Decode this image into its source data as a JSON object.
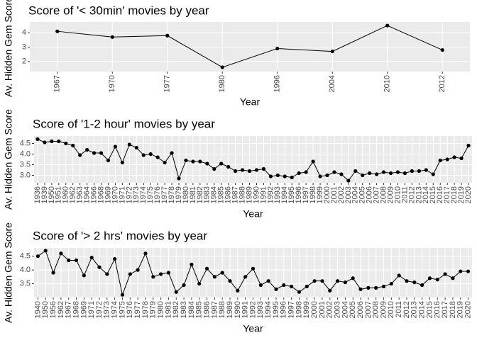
{
  "chart_data": [
    {
      "type": "line",
      "title": "Score of '< 30min' movies by year",
      "x_label": "Year",
      "y_label": "Av. Hidden Gem Score",
      "color": "#000000",
      "grid": true,
      "categories": [
        "1967",
        "1970",
        "1977",
        "1980",
        "1996",
        "2004",
        "2010",
        "2012"
      ],
      "values": [
        4.1,
        3.7,
        3.8,
        1.6,
        2.9,
        2.7,
        4.5,
        2.8
      ],
      "ylim": [
        1.3,
        4.75
      ],
      "yticks": [
        2,
        3,
        4
      ]
    },
    {
      "type": "line",
      "title": "Score of '1-2 hour' movies by year",
      "x_label": "Year",
      "y_label": "Av. Hidden Gem Score",
      "color": "#000000",
      "grid": true,
      "categories": [
        "1936",
        "1939",
        "1950",
        "1951",
        "1960",
        "1962",
        "1963",
        "1964",
        "1966",
        "1968",
        "1969",
        "1970",
        "1971",
        "1972",
        "1973",
        "1974",
        "1975",
        "1976",
        "1977",
        "1978",
        "1979",
        "1980",
        "1981",
        "1982",
        "1983",
        "1984",
        "1985",
        "1986",
        "1987",
        "1988",
        "1989",
        "1990",
        "1991",
        "1992",
        "1993",
        "1994",
        "1995",
        "1996",
        "1997",
        "1998",
        "1999",
        "2000",
        "2001",
        "2002",
        "2003",
        "2004",
        "2005",
        "2006",
        "2007",
        "2008",
        "2009",
        "2010",
        "2011",
        "2012",
        "2013",
        "2014",
        "2015",
        "2016",
        "2017",
        "2018",
        "2019",
        "2020"
      ],
      "values": [
        4.7,
        4.55,
        4.6,
        4.6,
        4.5,
        4.4,
        3.95,
        4.2,
        4.05,
        4.05,
        3.7,
        4.35,
        3.6,
        4.45,
        4.3,
        3.95,
        4.0,
        3.85,
        3.6,
        4.05,
        2.85,
        3.7,
        3.65,
        3.65,
        3.55,
        3.3,
        3.55,
        3.4,
        3.2,
        3.25,
        3.2,
        3.25,
        3.3,
        2.95,
        3.0,
        2.95,
        2.9,
        3.1,
        3.15,
        3.65,
        2.95,
        3.0,
        3.15,
        3.05,
        2.75,
        3.2,
        3.0,
        3.1,
        3.05,
        3.15,
        3.1,
        3.15,
        3.1,
        3.2,
        3.2,
        3.25,
        3.05,
        3.7,
        3.75,
        3.85,
        3.8,
        4.4
      ],
      "ylim": [
        2.65,
        4.85
      ],
      "yticks": [
        {
          "value": 3,
          "label": "3.0"
        },
        {
          "value": 3.5,
          "label": "3.5"
        },
        {
          "value": 4,
          "label": "4.0"
        },
        {
          "value": 4.5,
          "label": "4.5"
        }
      ]
    },
    {
      "type": "line",
      "title": "Score of '> 2 hrs' movies by year",
      "x_label": "Year",
      "y_label": "Av. Hidden Gem Score",
      "color": "#000000",
      "grid": true,
      "categories": [
        "1940",
        "1950",
        "1956",
        "1962",
        "1967",
        "1968",
        "1969",
        "1971",
        "1972",
        "1973",
        "1974",
        "1975",
        "1976",
        "1977",
        "1978",
        "1979",
        "1980",
        "1981",
        "1982",
        "1983",
        "1984",
        "1985",
        "1986",
        "1987",
        "1988",
        "1989",
        "1990",
        "1991",
        "1992",
        "1993",
        "1994",
        "1995",
        "1996",
        "1997",
        "1998",
        "1999",
        "2000",
        "2001",
        "2002",
        "2003",
        "2004",
        "2005",
        "2006",
        "2007",
        "2008",
        "2009",
        "2010",
        "2011",
        "2012",
        "2013",
        "2014",
        "2015",
        "2016",
        "2017",
        "2018",
        "2019",
        "2020"
      ],
      "values": [
        4.5,
        4.7,
        3.9,
        4.6,
        4.35,
        4.35,
        3.8,
        4.45,
        4.1,
        3.85,
        4.4,
        3.1,
        3.85,
        4.0,
        4.6,
        3.75,
        3.85,
        3.9,
        3.2,
        3.45,
        4.2,
        3.5,
        4.05,
        3.75,
        3.9,
        3.6,
        3.25,
        3.75,
        4.05,
        3.45,
        3.6,
        3.3,
        3.45,
        3.4,
        3.2,
        3.4,
        3.6,
        3.6,
        3.25,
        3.6,
        3.55,
        3.7,
        3.3,
        3.35,
        3.35,
        3.4,
        3.5,
        3.8,
        3.6,
        3.55,
        3.45,
        3.7,
        3.65,
        3.85,
        3.7,
        3.95,
        3.95
      ],
      "ylim": [
        3.0,
        4.8
      ],
      "yticks": [
        {
          "value": 3.5,
          "label": "3.5"
        },
        {
          "value": 4,
          "label": "4.0"
        },
        {
          "value": 4.5,
          "label": "4.5"
        }
      ]
    }
  ]
}
